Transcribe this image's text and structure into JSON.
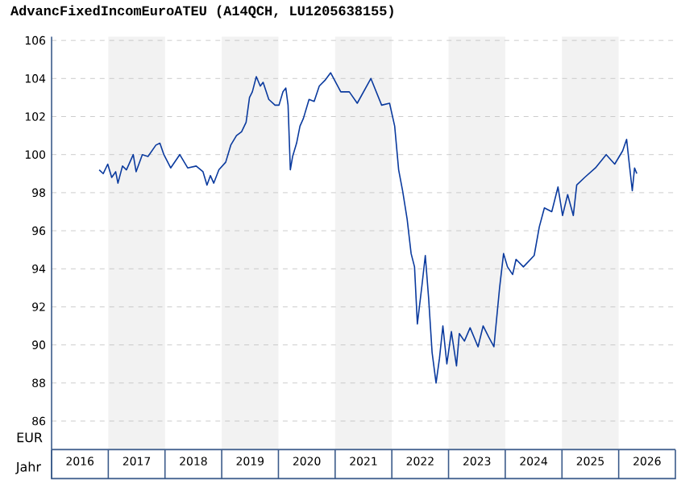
{
  "chart_data": {
    "type": "line",
    "title": "AdvancFixedIncomEuroATEU (A14QCH, LU1205638155)",
    "xlabel": "Jahr",
    "ylabel": "EUR",
    "xlim": [
      2016,
      2027
    ],
    "ylim": [
      84.5,
      106.2
    ],
    "xticks": [
      {
        "value": 2016.5,
        "label": "2016"
      },
      {
        "value": 2017.5,
        "label": "2017"
      },
      {
        "value": 2018.5,
        "label": "2018"
      },
      {
        "value": 2019.5,
        "label": "2019"
      },
      {
        "value": 2020.5,
        "label": "2020"
      },
      {
        "value": 2021.5,
        "label": "2021"
      },
      {
        "value": 2022.5,
        "label": "2022"
      },
      {
        "value": 2023.5,
        "label": "2023"
      },
      {
        "value": 2024.5,
        "label": "2024"
      },
      {
        "value": 2025.5,
        "label": "2025"
      },
      {
        "value": 2026.5,
        "label": "2026"
      }
    ],
    "yticks": [
      86,
      88,
      90,
      92,
      94,
      96,
      98,
      100,
      102,
      104,
      106
    ],
    "grid": "y",
    "bands": [
      {
        "axis": "x",
        "from": 2017,
        "to": 2018,
        "color": "#f2f2f2"
      },
      {
        "axis": "x",
        "from": 2019,
        "to": 2020,
        "color": "#f2f2f2"
      },
      {
        "axis": "x",
        "from": 2021,
        "to": 2022,
        "color": "#f2f2f2"
      },
      {
        "axis": "x",
        "from": 2023,
        "to": 2024,
        "color": "#f2f2f2"
      },
      {
        "axis": "x",
        "from": 2025,
        "to": 2026,
        "color": "#f2f2f2"
      }
    ],
    "series": [
      {
        "color": "#0a3a9e",
        "x": [
          2016.84,
          2016.91,
          2016.99,
          2017.06,
          2017.13,
          2017.17,
          2017.25,
          2017.32,
          2017.44,
          2017.49,
          2017.6,
          2017.7,
          2017.84,
          2017.91,
          2017.98,
          2018.1,
          2018.26,
          2018.4,
          2018.55,
          2018.67,
          2018.74,
          2018.8,
          2018.86,
          2018.95,
          2019.07,
          2019.16,
          2019.26,
          2019.35,
          2019.43,
          2019.49,
          2019.54,
          2019.61,
          2019.68,
          2019.73,
          2019.83,
          2019.94,
          2020.01,
          2020.08,
          2020.13,
          2020.17,
          2020.21,
          2020.25,
          2020.32,
          2020.38,
          2020.44,
          2020.54,
          2020.63,
          2020.72,
          2020.82,
          2020.92,
          2021.1,
          2021.25,
          2021.39,
          2021.63,
          2021.82,
          2021.96,
          2022.05,
          2022.12,
          2022.19,
          2022.27,
          2022.34,
          2022.4,
          2022.45,
          2022.53,
          2022.59,
          2022.65,
          2022.71,
          2022.78,
          2022.84,
          2022.9,
          2022.97,
          2023.05,
          2023.14,
          2023.19,
          2023.28,
          2023.38,
          2023.52,
          2023.61,
          2023.71,
          2023.8,
          2023.9,
          2023.97,
          2024.04,
          2024.13,
          2024.19,
          2024.32,
          2024.51,
          2024.6,
          2024.69,
          2024.82,
          2024.93,
          2025.01,
          2025.1,
          2025.2,
          2025.26,
          2025.4,
          2025.59,
          2025.78,
          2025.93,
          2026.07,
          2026.14,
          2026.18,
          2026.24,
          2026.28,
          2026.32
        ],
        "values": [
          99.2,
          99.0,
          99.5,
          98.8,
          99.1,
          98.5,
          99.4,
          99.2,
          100.0,
          99.1,
          100.0,
          99.9,
          100.5,
          100.6,
          100.0,
          99.3,
          100.0,
          99.3,
          99.4,
          99.1,
          98.4,
          98.9,
          98.5,
          99.2,
          99.6,
          100.5,
          101.0,
          101.2,
          101.7,
          103.0,
          103.3,
          104.1,
          103.6,
          103.8,
          102.9,
          102.6,
          102.6,
          103.3,
          103.5,
          102.6,
          99.2,
          99.9,
          100.6,
          101.5,
          101.9,
          102.9,
          102.8,
          103.6,
          103.9,
          104.3,
          103.3,
          103.3,
          102.7,
          104.0,
          102.6,
          102.7,
          101.5,
          99.2,
          98.1,
          96.6,
          94.8,
          94.1,
          91.1,
          93.1,
          94.7,
          92.4,
          89.6,
          88.0,
          89.3,
          91.0,
          89.0,
          90.7,
          88.9,
          90.6,
          90.2,
          90.9,
          89.9,
          91.0,
          90.4,
          89.9,
          93.0,
          94.8,
          94.1,
          93.7,
          94.5,
          94.1,
          94.7,
          96.2,
          97.2,
          97.0,
          98.3,
          96.8,
          97.9,
          96.8,
          98.4,
          98.8,
          99.3,
          100.0,
          99.5,
          100.2,
          100.8,
          99.7,
          98.1,
          99.3,
          99.0
        ]
      }
    ]
  }
}
